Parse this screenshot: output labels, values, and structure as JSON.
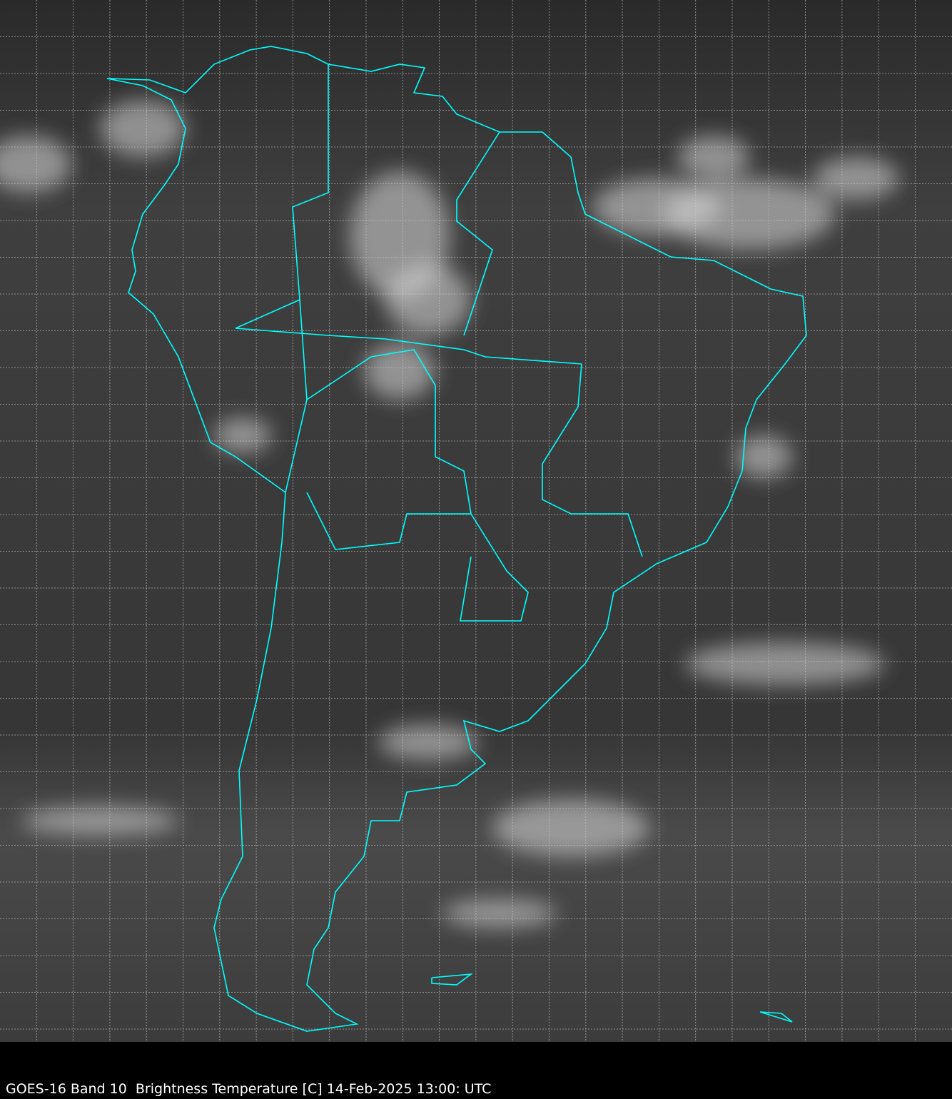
{
  "caption": "GOES-16 Band 10  Brightness Temperature [C] 14-Feb-2025 13:00: UTC",
  "colors": {
    "background": "#000000",
    "coastline": "#00ffff",
    "grid": "#d0d0d0",
    "caption": "#ffffff"
  },
  "map": {
    "region": "South America",
    "grid": true,
    "grid_style": "dashed",
    "imagery": "grayscale infrared"
  }
}
